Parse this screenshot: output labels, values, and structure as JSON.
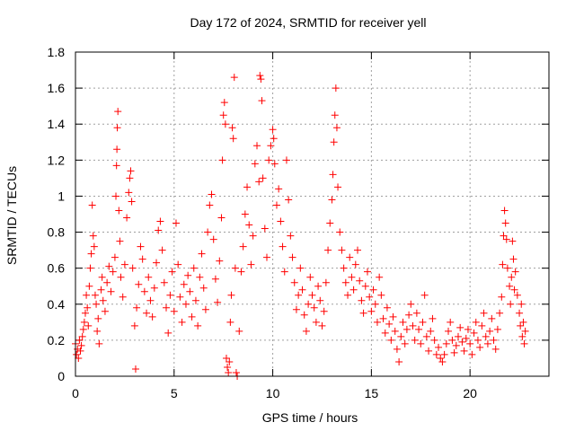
{
  "chart_data": {
    "type": "scatter",
    "title": "Day 172 of 2024, SRMTID for receiver yell",
    "xlabel": "GPS time / hours",
    "ylabel": "SRMTID / TECUs",
    "xlim": [
      0,
      24
    ],
    "ylim": [
      0,
      1.8
    ],
    "xticks": [
      0,
      5,
      10,
      15,
      20
    ],
    "xtick_labels": [
      "0",
      "5",
      "10",
      "15",
      "20"
    ],
    "yticks": [
      0,
      0.2,
      0.4,
      0.6,
      0.8,
      1,
      1.2,
      1.4,
      1.6,
      1.8
    ],
    "ytick_labels": [
      "0",
      "0.2",
      "0.4",
      "0.6",
      "0.8",
      "1",
      "1.2",
      "1.4",
      "1.6",
      "1.8"
    ],
    "grid": true,
    "marker": "+",
    "color": "#ff0000",
    "series": [
      {
        "name": "SRMTID",
        "points": [
          [
            0.0,
            0.18
          ],
          [
            0.05,
            0.12
          ],
          [
            0.1,
            0.15
          ],
          [
            0.15,
            0.1
          ],
          [
            0.2,
            0.2
          ],
          [
            0.25,
            0.14
          ],
          [
            0.3,
            0.17
          ],
          [
            0.35,
            0.22
          ],
          [
            0.4,
            0.26
          ],
          [
            0.45,
            0.3
          ],
          [
            0.5,
            0.35
          ],
          [
            0.55,
            0.45
          ],
          [
            0.6,
            0.38
          ],
          [
            0.65,
            0.28
          ],
          [
            0.7,
            0.5
          ],
          [
            0.75,
            0.6
          ],
          [
            0.8,
            0.68
          ],
          [
            0.85,
            0.95
          ],
          [
            0.9,
            0.78
          ],
          [
            0.95,
            0.72
          ],
          [
            1.0,
            0.45
          ],
          [
            1.05,
            0.4
          ],
          [
            1.1,
            0.25
          ],
          [
            1.15,
            0.32
          ],
          [
            1.2,
            0.18
          ],
          [
            1.3,
            0.48
          ],
          [
            1.35,
            0.55
          ],
          [
            1.4,
            0.42
          ],
          [
            1.5,
            0.36
          ],
          [
            1.6,
            0.52
          ],
          [
            1.7,
            0.61
          ],
          [
            1.8,
            0.47
          ],
          [
            1.9,
            0.58
          ],
          [
            2.0,
            0.66
          ],
          [
            2.05,
            1.0
          ],
          [
            2.08,
            1.17
          ],
          [
            2.1,
            1.26
          ],
          [
            2.12,
            1.38
          ],
          [
            2.15,
            1.47
          ],
          [
            2.2,
            0.92
          ],
          [
            2.25,
            0.75
          ],
          [
            2.3,
            0.55
          ],
          [
            2.4,
            0.44
          ],
          [
            2.5,
            0.62
          ],
          [
            2.6,
            0.88
          ],
          [
            2.7,
            1.02
          ],
          [
            2.75,
            1.1
          ],
          [
            2.8,
            1.14
          ],
          [
            2.85,
            0.97
          ],
          [
            2.9,
            0.6
          ],
          [
            3.0,
            0.28
          ],
          [
            3.05,
            0.04
          ],
          [
            3.1,
            0.38
          ],
          [
            3.2,
            0.51
          ],
          [
            3.3,
            0.72
          ],
          [
            3.4,
            0.65
          ],
          [
            3.5,
            0.47
          ],
          [
            3.6,
            0.35
          ],
          [
            3.7,
            0.55
          ],
          [
            3.8,
            0.42
          ],
          [
            3.9,
            0.33
          ],
          [
            4.0,
            0.49
          ],
          [
            4.1,
            0.63
          ],
          [
            4.2,
            0.81
          ],
          [
            4.3,
            0.86
          ],
          [
            4.4,
            0.7
          ],
          [
            4.5,
            0.52
          ],
          [
            4.6,
            0.38
          ],
          [
            4.7,
            0.24
          ],
          [
            4.8,
            0.45
          ],
          [
            4.9,
            0.58
          ],
          [
            5.0,
            0.36
          ],
          [
            5.1,
            0.85
          ],
          [
            5.2,
            0.62
          ],
          [
            5.3,
            0.44
          ],
          [
            5.4,
            0.3
          ],
          [
            5.5,
            0.51
          ],
          [
            5.6,
            0.4
          ],
          [
            5.7,
            0.56
          ],
          [
            5.8,
            0.47
          ],
          [
            5.9,
            0.33
          ],
          [
            6.0,
            0.6
          ],
          [
            6.1,
            0.42
          ],
          [
            6.2,
            0.28
          ],
          [
            6.3,
            0.55
          ],
          [
            6.4,
            0.68
          ],
          [
            6.5,
            0.49
          ],
          [
            6.6,
            0.37
          ],
          [
            6.7,
            0.8
          ],
          [
            6.8,
            0.95
          ],
          [
            6.9,
            1.01
          ],
          [
            7.0,
            0.76
          ],
          [
            7.1,
            0.54
          ],
          [
            7.2,
            0.41
          ],
          [
            7.3,
            0.64
          ],
          [
            7.4,
            0.88
          ],
          [
            7.45,
            1.2
          ],
          [
            7.5,
            1.45
          ],
          [
            7.55,
            1.52
          ],
          [
            7.6,
            1.4
          ],
          [
            7.65,
            0.1
          ],
          [
            7.7,
            0.05
          ],
          [
            7.75,
            0.02
          ],
          [
            7.8,
            0.08
          ],
          [
            7.85,
            0.3
          ],
          [
            7.9,
            0.45
          ],
          [
            7.95,
            1.38
          ],
          [
            8.0,
            1.32
          ],
          [
            8.05,
            1.66
          ],
          [
            8.1,
            0.6
          ],
          [
            8.15,
            0.02
          ],
          [
            8.2,
            0.0
          ],
          [
            8.3,
            0.25
          ],
          [
            8.4,
            0.58
          ],
          [
            8.5,
            0.72
          ],
          [
            8.6,
            0.9
          ],
          [
            8.7,
            1.05
          ],
          [
            8.8,
            0.84
          ],
          [
            8.9,
            0.62
          ],
          [
            9.0,
            0.78
          ],
          [
            9.1,
            1.18
          ],
          [
            9.2,
            1.28
          ],
          [
            9.3,
            1.08
          ],
          [
            9.35,
            1.67
          ],
          [
            9.4,
            1.65
          ],
          [
            9.45,
            1.53
          ],
          [
            9.5,
            1.1
          ],
          [
            9.6,
            0.82
          ],
          [
            9.7,
            0.66
          ],
          [
            9.8,
            1.2
          ],
          [
            9.9,
            1.28
          ],
          [
            10.0,
            1.37
          ],
          [
            10.05,
            1.32
          ],
          [
            10.1,
            1.18
          ],
          [
            10.2,
            0.95
          ],
          [
            10.3,
            1.04
          ],
          [
            10.4,
            0.86
          ],
          [
            10.5,
            0.72
          ],
          [
            10.6,
            0.58
          ],
          [
            10.7,
            1.2
          ],
          [
            10.8,
            0.98
          ],
          [
            10.9,
            0.78
          ],
          [
            11.0,
            0.66
          ],
          [
            11.1,
            0.52
          ],
          [
            11.2,
            0.37
          ],
          [
            11.3,
            0.45
          ],
          [
            11.4,
            0.6
          ],
          [
            11.5,
            0.48
          ],
          [
            11.6,
            0.34
          ],
          [
            11.7,
            0.25
          ],
          [
            11.8,
            0.4
          ],
          [
            11.9,
            0.55
          ],
          [
            12.0,
            0.45
          ],
          [
            12.1,
            0.38
          ],
          [
            12.2,
            0.3
          ],
          [
            12.3,
            0.5
          ],
          [
            12.4,
            0.42
          ],
          [
            12.5,
            0.28
          ],
          [
            12.6,
            0.36
          ],
          [
            12.7,
            0.52
          ],
          [
            12.8,
            0.7
          ],
          [
            12.9,
            0.85
          ],
          [
            13.0,
            0.98
          ],
          [
            13.05,
            1.12
          ],
          [
            13.1,
            1.3
          ],
          [
            13.15,
            1.45
          ],
          [
            13.2,
            1.6
          ],
          [
            13.25,
            1.38
          ],
          [
            13.3,
            1.05
          ],
          [
            13.4,
            0.8
          ],
          [
            13.5,
            0.7
          ],
          [
            13.6,
            0.6
          ],
          [
            13.7,
            0.52
          ],
          [
            13.8,
            0.45
          ],
          [
            13.9,
            0.66
          ],
          [
            14.0,
            0.55
          ],
          [
            14.1,
            0.48
          ],
          [
            14.2,
            0.62
          ],
          [
            14.3,
            0.7
          ],
          [
            14.4,
            0.53
          ],
          [
            14.5,
            0.42
          ],
          [
            14.6,
            0.35
          ],
          [
            14.7,
            0.5
          ],
          [
            14.8,
            0.58
          ],
          [
            14.9,
            0.44
          ],
          [
            15.0,
            0.36
          ],
          [
            15.1,
            0.48
          ],
          [
            15.2,
            0.4
          ],
          [
            15.3,
            0.3
          ],
          [
            15.4,
            0.55
          ],
          [
            15.5,
            0.45
          ],
          [
            15.6,
            0.32
          ],
          [
            15.7,
            0.24
          ],
          [
            15.8,
            0.38
          ],
          [
            15.9,
            0.29
          ],
          [
            16.0,
            0.2
          ],
          [
            16.1,
            0.33
          ],
          [
            16.2,
            0.25
          ],
          [
            16.3,
            0.15
          ],
          [
            16.4,
            0.08
          ],
          [
            16.5,
            0.22
          ],
          [
            16.6,
            0.3
          ],
          [
            16.7,
            0.18
          ],
          [
            16.8,
            0.26
          ],
          [
            16.9,
            0.34
          ],
          [
            17.0,
            0.4
          ],
          [
            17.1,
            0.28
          ],
          [
            17.2,
            0.2
          ],
          [
            17.3,
            0.35
          ],
          [
            17.4,
            0.26
          ],
          [
            17.5,
            0.18
          ],
          [
            17.6,
            0.3
          ],
          [
            17.7,
            0.45
          ],
          [
            17.8,
            0.22
          ],
          [
            17.9,
            0.14
          ],
          [
            18.0,
            0.25
          ],
          [
            18.1,
            0.32
          ],
          [
            18.2,
            0.2
          ],
          [
            18.3,
            0.12
          ],
          [
            18.4,
            0.16
          ],
          [
            18.5,
            0.1
          ],
          [
            18.6,
            0.08
          ],
          [
            18.7,
            0.12
          ],
          [
            18.8,
            0.18
          ],
          [
            18.9,
            0.25
          ],
          [
            19.0,
            0.3
          ],
          [
            19.1,
            0.2
          ],
          [
            19.2,
            0.13
          ],
          [
            19.3,
            0.17
          ],
          [
            19.4,
            0.22
          ],
          [
            19.5,
            0.27
          ],
          [
            19.6,
            0.19
          ],
          [
            19.7,
            0.14
          ],
          [
            19.8,
            0.21
          ],
          [
            19.9,
            0.26
          ],
          [
            20.0,
            0.18
          ],
          [
            20.1,
            0.12
          ],
          [
            20.2,
            0.24
          ],
          [
            20.3,
            0.3
          ],
          [
            20.4,
            0.2
          ],
          [
            20.5,
            0.16
          ],
          [
            20.6,
            0.28
          ],
          [
            20.7,
            0.35
          ],
          [
            20.8,
            0.22
          ],
          [
            20.9,
            0.18
          ],
          [
            21.0,
            0.25
          ],
          [
            21.1,
            0.32
          ],
          [
            21.2,
            0.2
          ],
          [
            21.3,
            0.15
          ],
          [
            21.4,
            0.26
          ],
          [
            21.5,
            0.35
          ],
          [
            21.6,
            0.44
          ],
          [
            21.65,
            0.62
          ],
          [
            21.7,
            0.78
          ],
          [
            21.75,
            0.92
          ],
          [
            21.8,
            0.85
          ],
          [
            21.85,
            0.76
          ],
          [
            21.9,
            0.6
          ],
          [
            22.0,
            0.5
          ],
          [
            22.05,
            0.4
          ],
          [
            22.1,
            0.55
          ],
          [
            22.15,
            0.75
          ],
          [
            22.2,
            0.65
          ],
          [
            22.25,
            0.48
          ],
          [
            22.3,
            0.58
          ],
          [
            22.4,
            0.45
          ],
          [
            22.5,
            0.35
          ],
          [
            22.55,
            0.28
          ],
          [
            22.6,
            0.4
          ],
          [
            22.65,
            0.22
          ],
          [
            22.7,
            0.3
          ],
          [
            22.75,
            0.18
          ],
          [
            22.8,
            0.25
          ]
        ]
      }
    ]
  }
}
